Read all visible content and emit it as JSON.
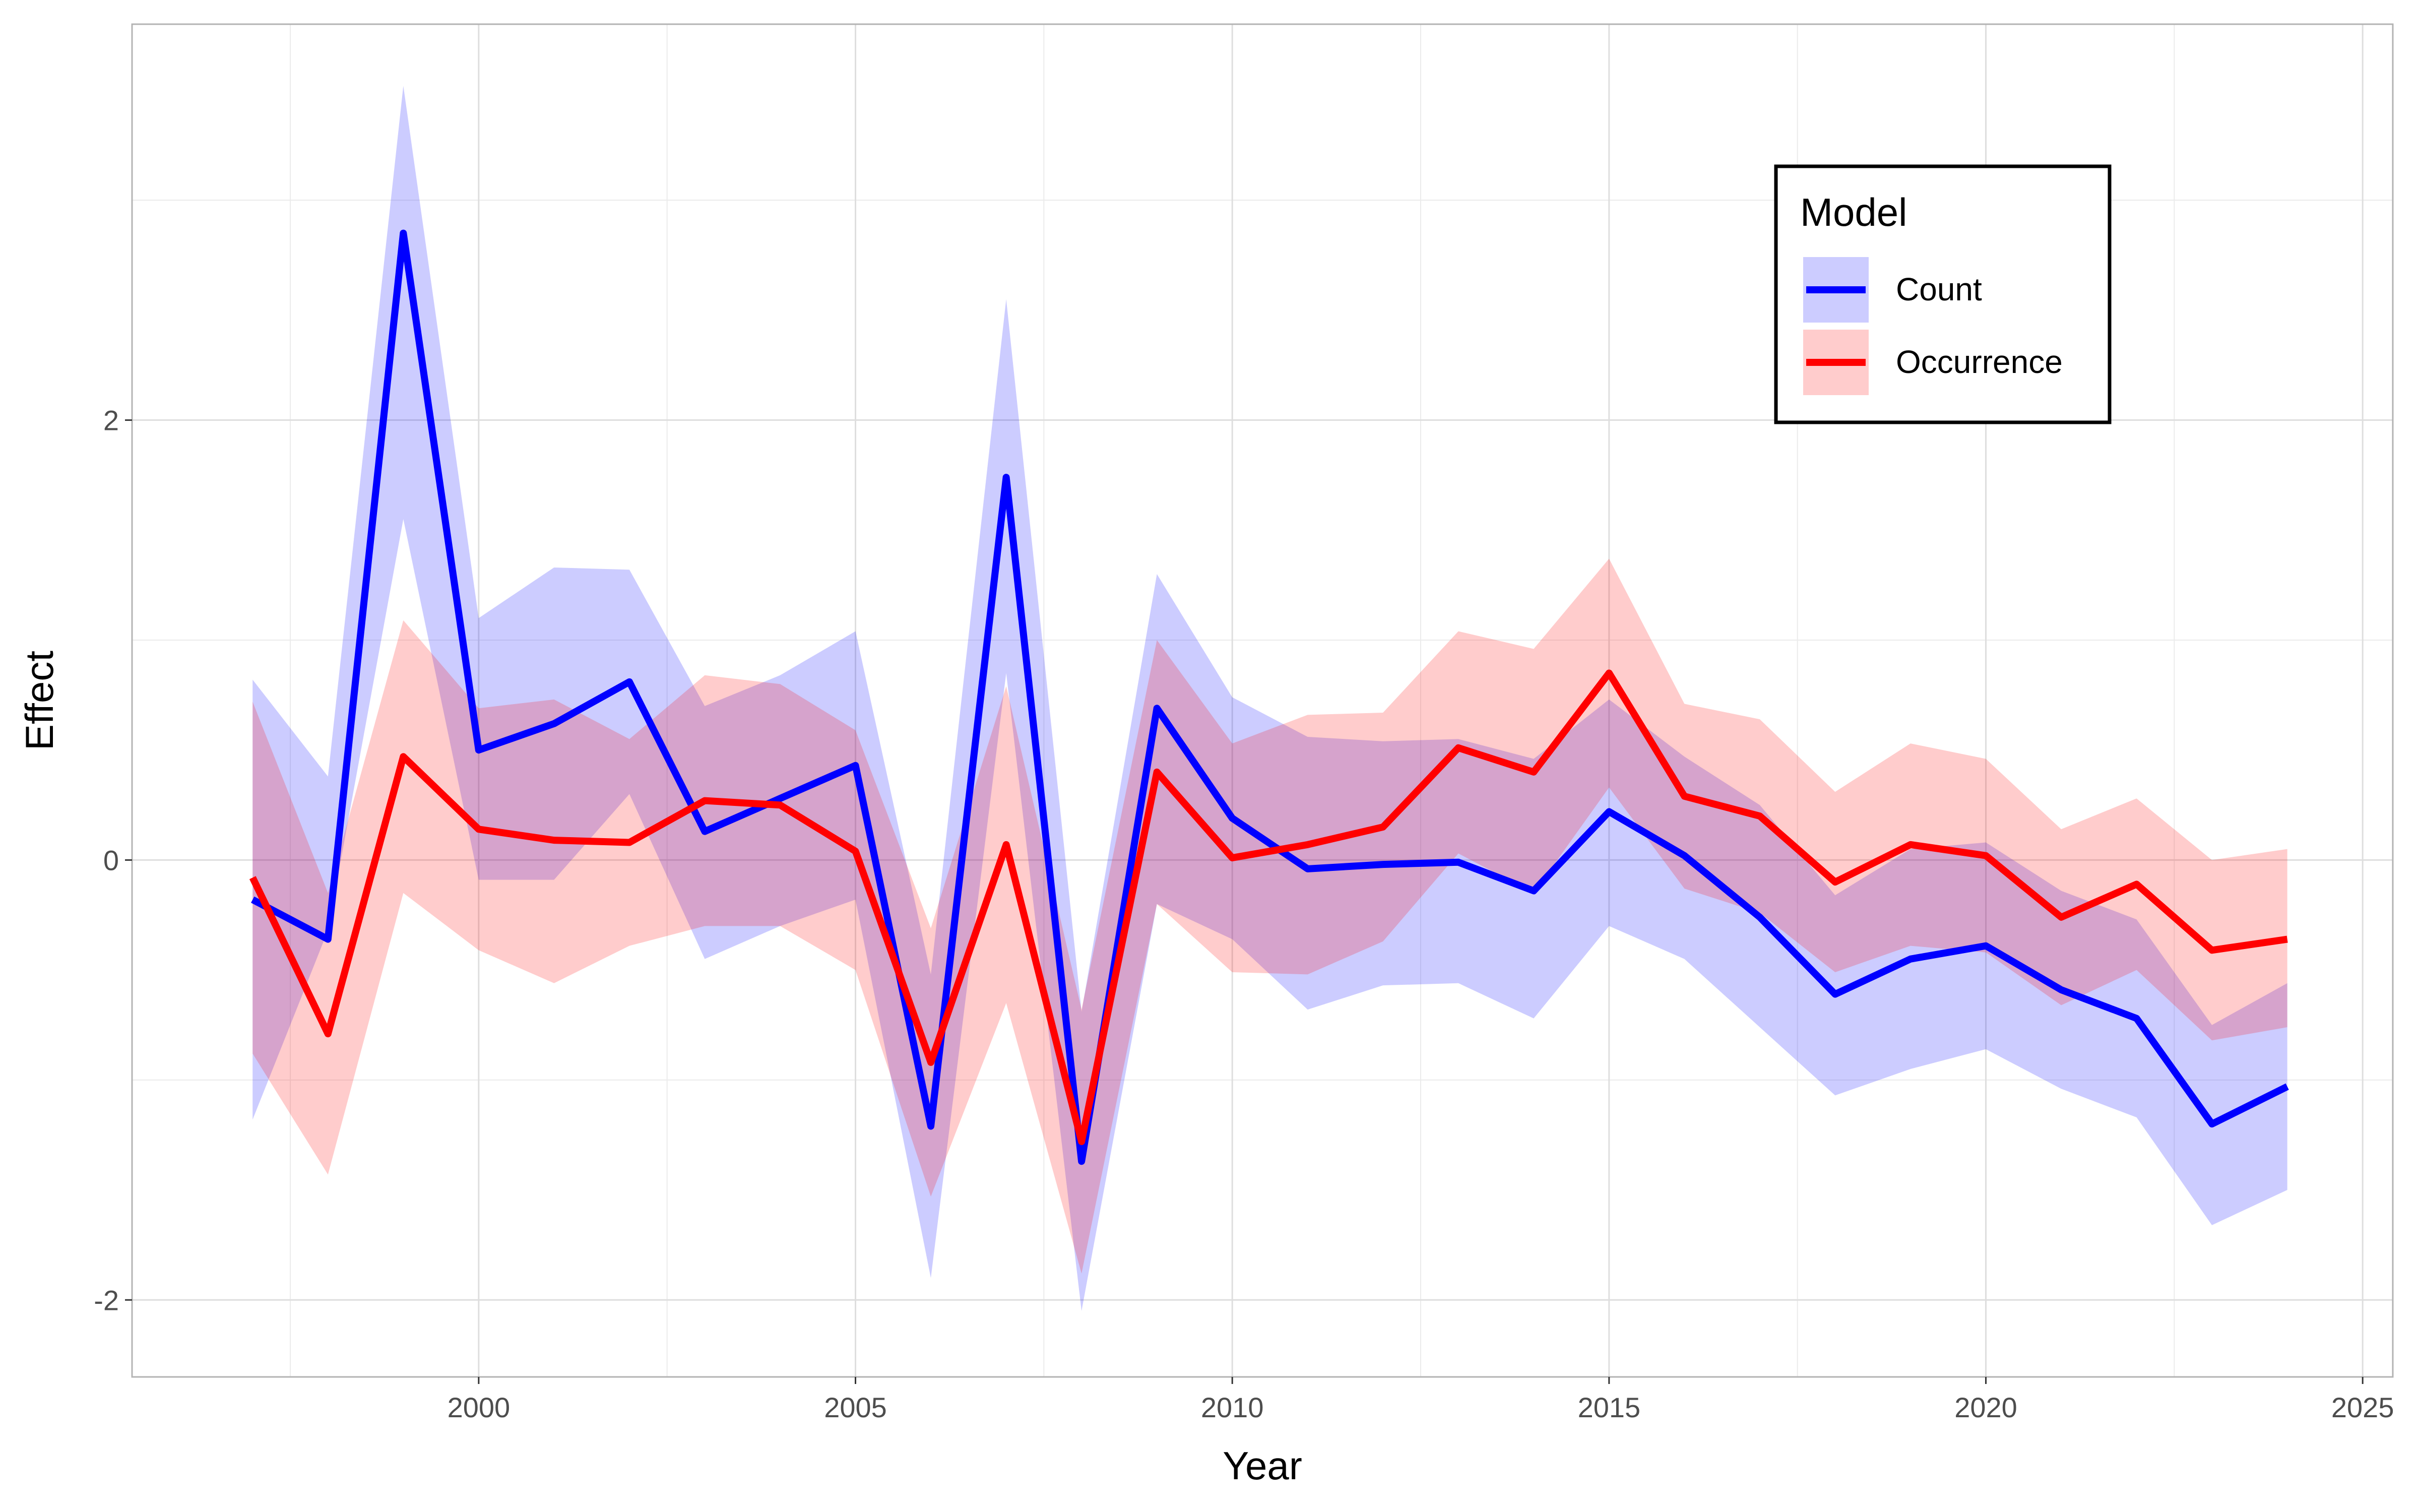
{
  "chart_data": {
    "type": "line",
    "xlabel": "Year",
    "ylabel": "Effect",
    "xlim": [
      1995.4,
      2025.4
    ],
    "ylim": [
      -2.35,
      3.8
    ],
    "x_ticks": [
      2000,
      2005,
      2010,
      2015,
      2020,
      2025
    ],
    "y_ticks": [
      -2,
      0,
      2
    ],
    "grid": true,
    "legend": {
      "title": "Model",
      "position": "top-right"
    },
    "x": [
      1997,
      1998,
      1999,
      2000,
      2001,
      2002,
      2003,
      2004,
      2005,
      2006,
      2007,
      2008,
      2009,
      2010,
      2011,
      2012,
      2013,
      2014,
      2015,
      2016,
      2017,
      2018,
      2019,
      2020,
      2021,
      2022,
      2023,
      2024
    ],
    "series": [
      {
        "name": "Count",
        "color": "#0000ff",
        "band_color": "#c8c8ff",
        "values": [
          -0.18,
          -0.36,
          2.85,
          0.5,
          0.62,
          0.81,
          0.13,
          0.28,
          0.43,
          -1.21,
          1.74,
          -1.37,
          0.69,
          0.19,
          -0.04,
          -0.02,
          -0.01,
          -0.14,
          0.22,
          0.02,
          -0.26,
          -0.61,
          -0.45,
          -0.39,
          -0.59,
          -0.72,
          -1.2,
          -1.03
        ],
        "lower": [
          -1.18,
          -0.32,
          1.55,
          -0.09,
          -0.09,
          0.3,
          -0.45,
          -0.3,
          -0.18,
          -1.9,
          0.85,
          -2.05,
          -0.2,
          -0.36,
          -0.68,
          -0.57,
          -0.56,
          -0.72,
          -0.3,
          -0.45,
          -0.76,
          -1.07,
          -0.95,
          -0.86,
          -1.04,
          -1.17,
          -1.66,
          -1.5
        ],
        "upper": [
          0.82,
          0.38,
          3.52,
          1.1,
          1.33,
          1.32,
          0.7,
          0.84,
          1.04,
          -0.52,
          2.55,
          -0.69,
          1.3,
          0.74,
          0.56,
          0.54,
          0.55,
          0.46,
          0.73,
          0.47,
          0.25,
          -0.16,
          0.05,
          0.08,
          -0.14,
          -0.27,
          -0.75,
          -0.56
        ]
      },
      {
        "name": "Occurrence",
        "color": "#ff0000",
        "band_color": "#ffc8c8",
        "values": [
          -0.08,
          -0.79,
          0.47,
          0.14,
          0.09,
          0.08,
          0.27,
          0.25,
          0.04,
          -0.92,
          0.07,
          -1.28,
          0.4,
          0.01,
          0.07,
          0.15,
          0.51,
          0.4,
          0.85,
          0.29,
          0.2,
          -0.1,
          0.07,
          0.02,
          -0.26,
          -0.11,
          -0.41,
          -0.36
        ],
        "lower": [
          -0.88,
          -1.43,
          -0.15,
          -0.41,
          -0.56,
          -0.39,
          -0.3,
          -0.3,
          -0.5,
          -1.53,
          -0.65,
          -1.88,
          -0.2,
          -0.51,
          -0.52,
          -0.37,
          0.03,
          -0.15,
          0.33,
          -0.13,
          -0.24,
          -0.51,
          -0.39,
          -0.42,
          -0.66,
          -0.5,
          -0.82,
          -0.76
        ],
        "upper": [
          0.72,
          -0.15,
          1.09,
          0.69,
          0.73,
          0.55,
          0.84,
          0.8,
          0.59,
          -0.31,
          0.79,
          -0.68,
          1.0,
          0.53,
          0.66,
          0.67,
          1.04,
          0.96,
          1.37,
          0.71,
          0.64,
          0.31,
          0.53,
          0.46,
          0.14,
          0.28,
          0.0,
          0.05
        ]
      }
    ]
  }
}
